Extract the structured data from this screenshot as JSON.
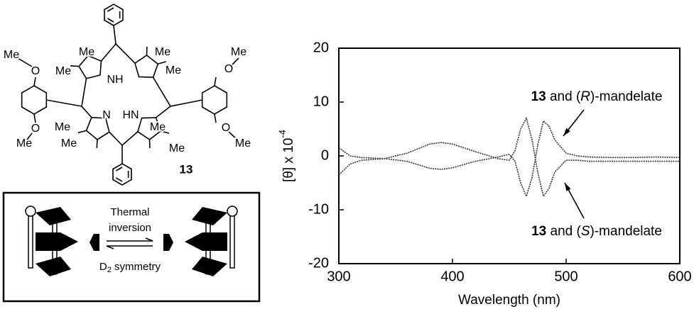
{
  "structure": {
    "atom_labels": [
      "Me",
      "O",
      "Me",
      "Me",
      "NH",
      "Me",
      "Me",
      "Me",
      "O",
      "N",
      "HN",
      "Me",
      "Me",
      "Me",
      "Me",
      "O",
      "Me",
      "O",
      "Me"
    ],
    "compound_number": "13"
  },
  "scheme": {
    "line1": "Thermal",
    "line2": "inversion",
    "symmetry_prefix": "D",
    "symmetry_subscript": "2",
    "symmetry_suffix": " symmetry"
  },
  "chart_data": {
    "type": "line",
    "x_label": "Wavelength (nm)",
    "y_label": "[θ] x 10",
    "y_label_superscript": "-4",
    "x": [
      300,
      310,
      320,
      340,
      360,
      380,
      390,
      400,
      420,
      440,
      450,
      455,
      460,
      465,
      470,
      475,
      480,
      485,
      490,
      500,
      510,
      520,
      540,
      560,
      580,
      600
    ],
    "series": [
      {
        "color": "#333333",
        "values": [
          -3.5,
          -1.5,
          -0.8,
          -0.5,
          -1,
          -2.3,
          -2.5,
          -2.2,
          -1,
          -0.2,
          0.3,
          -1,
          -5,
          -7.5,
          -4,
          2,
          6.5,
          5.5,
          3,
          0.5,
          0,
          -0.2,
          -0.3,
          -0.3,
          -0.2,
          -0.3
        ]
      },
      {
        "color": "#333333",
        "values": [
          1.5,
          0,
          -0.3,
          -0.5,
          0.5,
          2.2,
          2.5,
          2.2,
          0.8,
          -0.5,
          -0.8,
          1,
          5,
          7,
          3,
          -3,
          -7.5,
          -6,
          -3,
          -0.8,
          -0.8,
          -1,
          -1,
          -1,
          -1,
          -1
        ]
      }
    ],
    "annotations": [
      {
        "parts": [
          "13",
          " and (",
          "R",
          ")-mandelate"
        ]
      },
      {
        "parts": [
          "13",
          " and (",
          "S",
          ")-mandelate"
        ]
      }
    ],
    "xlim": [
      300,
      600
    ],
    "ylim": [
      -20,
      20
    ],
    "xticks": [
      300,
      400,
      500,
      600
    ],
    "yticks": [
      -20,
      -10,
      0,
      10,
      20
    ]
  }
}
